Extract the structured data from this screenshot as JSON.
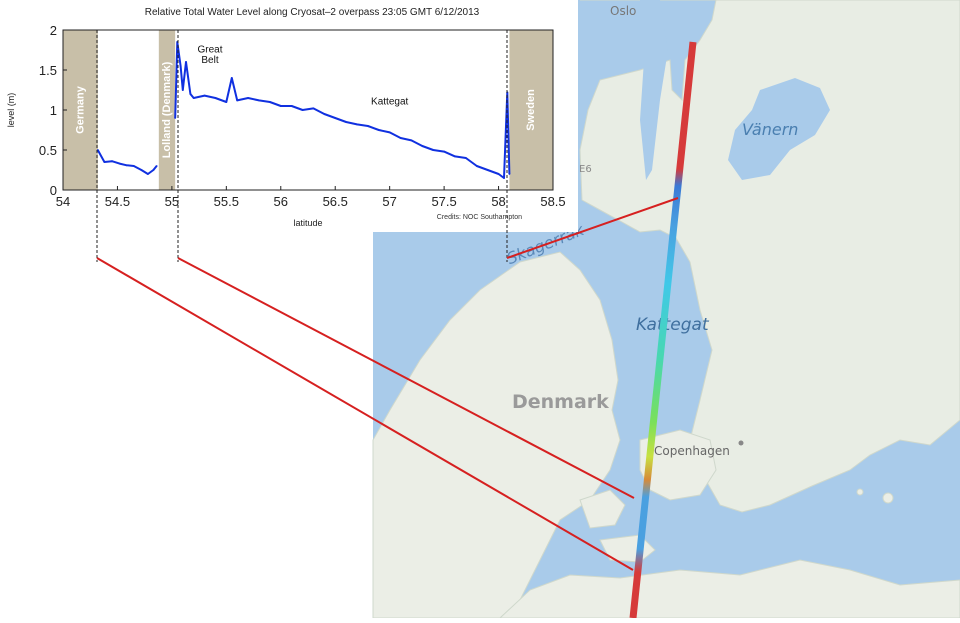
{
  "chart_data": {
    "type": "line",
    "title": "Relative Total Water Level along Cryosat–2 overpass 23:05 GMT 6/12/2013",
    "xlabel": "latitude",
    "ylabel": "level (m)",
    "xlim": [
      54,
      58.5
    ],
    "ylim": [
      0,
      2
    ],
    "xticks": [
      "54",
      "54.5",
      "55",
      "55.5",
      "56",
      "56.5",
      "57",
      "57.5",
      "58",
      "58.5"
    ],
    "yticks": [
      "0",
      "0.5",
      "1",
      "1.5",
      "2"
    ],
    "grid": false,
    "credit": "Credits: NOC Southampton",
    "regions": [
      {
        "label": "Germany",
        "x0": 54.0,
        "x1": 54.32
      },
      {
        "label": "Lolland (Denmark)",
        "x0": 54.88,
        "x1": 55.03
      },
      {
        "label": "Sweden",
        "x0": 58.1,
        "x1": 58.5
      }
    ],
    "annotations": [
      {
        "text": "Great",
        "x": 55.35,
        "y": 1.72
      },
      {
        "text": "Belt",
        "x": 55.35,
        "y": 1.59
      },
      {
        "text": "Kattegat",
        "x": 57.0,
        "y": 1.07
      }
    ],
    "series": [
      {
        "color": "#1030e0",
        "segments": [
          {
            "x": [
              54.32,
              54.38,
              54.45,
              54.52,
              54.58,
              54.65,
              54.72,
              54.78,
              54.83,
              54.86
            ],
            "y": [
              0.5,
              0.35,
              0.36,
              0.33,
              0.31,
              0.3,
              0.25,
              0.2,
              0.25,
              0.3
            ]
          },
          {
            "x": [
              55.03,
              55.05,
              55.08,
              55.1,
              55.13,
              55.17,
              55.2,
              55.3,
              55.4,
              55.5,
              55.55,
              55.6,
              55.7,
              55.8,
              55.9,
              56.0,
              56.1,
              56.2,
              56.3,
              56.4,
              56.5,
              56.6,
              56.7,
              56.8,
              56.9,
              57.0,
              57.1,
              57.2,
              57.3,
              57.4,
              57.5,
              57.6,
              57.7,
              57.8,
              57.9,
              58.0,
              58.05,
              58.08,
              58.1
            ],
            "y": [
              0.9,
              1.85,
              1.55,
              1.25,
              1.6,
              1.2,
              1.15,
              1.18,
              1.15,
              1.1,
              1.4,
              1.12,
              1.15,
              1.12,
              1.1,
              1.05,
              1.05,
              1.0,
              1.02,
              0.95,
              0.9,
              0.85,
              0.82,
              0.8,
              0.75,
              0.72,
              0.65,
              0.62,
              0.55,
              0.5,
              0.48,
              0.42,
              0.4,
              0.3,
              0.25,
              0.2,
              0.15,
              1.22,
              0.2
            ]
          }
        ]
      }
    ]
  },
  "map": {
    "labels": {
      "oslo": "Oslo",
      "vanern": "Vänern",
      "skagerrak": "Skagerrak",
      "kattegat": "Kattegat",
      "denmark": "Denmark",
      "copenhagen": "Copenhagen",
      "road": "E6"
    },
    "colors": {
      "water": "#a9cbea",
      "land": "#e9eee6",
      "track_high": "#d63a3a",
      "connector": "#d62020"
    }
  }
}
